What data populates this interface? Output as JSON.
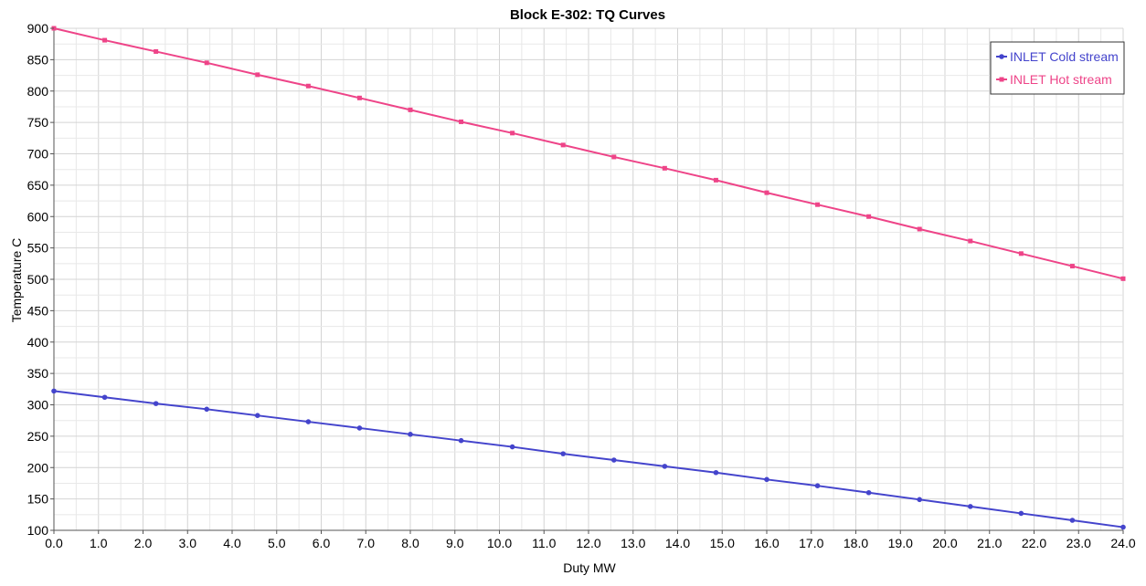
{
  "chart_data": {
    "type": "line",
    "title": "Block E-302: TQ Curves",
    "xlabel": "Duty MW",
    "ylabel": "Temperature C",
    "xlim": [
      0,
      24
    ],
    "ylim": [
      100,
      900
    ],
    "x_ticks": [
      "0.0",
      "1.0",
      "2.0",
      "3.0",
      "4.0",
      "5.0",
      "6.0",
      "7.0",
      "8.0",
      "9.0",
      "10.0",
      "11.0",
      "12.0",
      "13.0",
      "14.0",
      "15.0",
      "16.0",
      "17.0",
      "18.0",
      "19.0",
      "20.0",
      "21.0",
      "22.0",
      "23.0",
      "24.0"
    ],
    "y_ticks": [
      "100",
      "150",
      "200",
      "250",
      "300",
      "350",
      "400",
      "450",
      "500",
      "550",
      "600",
      "650",
      "700",
      "750",
      "800",
      "850",
      "900"
    ],
    "grid": true,
    "legend_position": "top-right",
    "series": [
      {
        "name": "INLET Cold stream",
        "color": "#4444cc",
        "marker": "circle",
        "x": [
          0,
          1.14,
          2.29,
          3.43,
          4.57,
          5.71,
          6.86,
          8.0,
          9.14,
          10.29,
          11.43,
          12.57,
          13.71,
          14.86,
          16.0,
          17.14,
          18.29,
          19.43,
          20.57,
          21.71,
          22.86,
          24.0
        ],
        "y": [
          322,
          312,
          302,
          293,
          283,
          273,
          263,
          253,
          243,
          233,
          222,
          212,
          202,
          192,
          181,
          171,
          160,
          149,
          138,
          127,
          116,
          105
        ]
      },
      {
        "name": "INLET Hot stream",
        "color": "#ee4488",
        "marker": "square",
        "x": [
          0,
          1.14,
          2.29,
          3.43,
          4.57,
          5.71,
          6.86,
          8.0,
          9.14,
          10.29,
          11.43,
          12.57,
          13.71,
          14.86,
          16.0,
          17.14,
          18.29,
          19.43,
          20.57,
          21.71,
          22.86,
          24.0
        ],
        "y": [
          900,
          881,
          863,
          845,
          826,
          808,
          789,
          770,
          751,
          733,
          714,
          695,
          677,
          658,
          638,
          619,
          600,
          580,
          561,
          541,
          521,
          501
        ]
      }
    ]
  }
}
